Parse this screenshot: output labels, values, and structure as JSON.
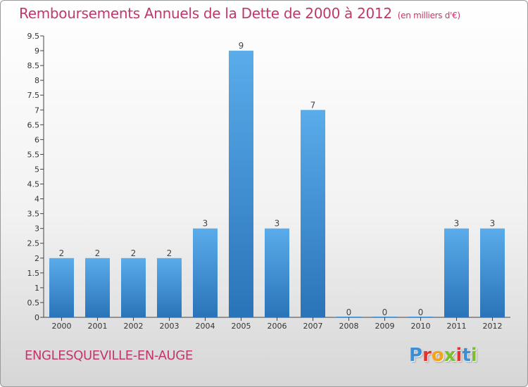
{
  "header": {
    "title": "Remboursements Annuels de la Dette de 2000 à 2012",
    "unit": "(en milliers d'€)"
  },
  "footer": {
    "commune": "ENGLESQUEVILLE-EN-AUGE",
    "logo_letters": [
      "P",
      "r",
      "o",
      "x",
      "i",
      "t",
      "i"
    ],
    "logo_colors": [
      "#3a8fd6",
      "#e2332d",
      "#f4a21c",
      "#7bbf2c",
      "#e2332d",
      "#3a8fd6",
      "#7bbf2c"
    ]
  },
  "chart_data": {
    "type": "bar",
    "categories": [
      "2000",
      "2001",
      "2002",
      "2003",
      "2004",
      "2005",
      "2006",
      "2007",
      "2008",
      "2009",
      "2010",
      "2011",
      "2012"
    ],
    "values": [
      2,
      2,
      2,
      2,
      3,
      9,
      3,
      7,
      0,
      0,
      0,
      3,
      3
    ],
    "value_labels": [
      "2",
      "2",
      "2",
      "2",
      "3",
      "9",
      "3",
      "7",
      "0",
      "0",
      "0",
      "3",
      "3"
    ],
    "ylim": [
      0,
      9.5
    ],
    "yticks": [
      0,
      0.5,
      1,
      1.5,
      2,
      2.5,
      3,
      3.5,
      4,
      4.5,
      5,
      5.5,
      6,
      6.5,
      7,
      7.5,
      8,
      8.5,
      9,
      9.5
    ],
    "ytick_labels": [
      "0",
      "0.5",
      "1",
      "1.5",
      "2",
      "2.5",
      "3",
      "3.5",
      "4",
      "4.5",
      "5",
      "5.5",
      "6",
      "6.5",
      "7",
      "7.5",
      "8",
      "8.5",
      "9",
      "9.5"
    ],
    "xlabel": "",
    "ylabel": "",
    "grid": false,
    "bar_color": "#3d95d9"
  }
}
